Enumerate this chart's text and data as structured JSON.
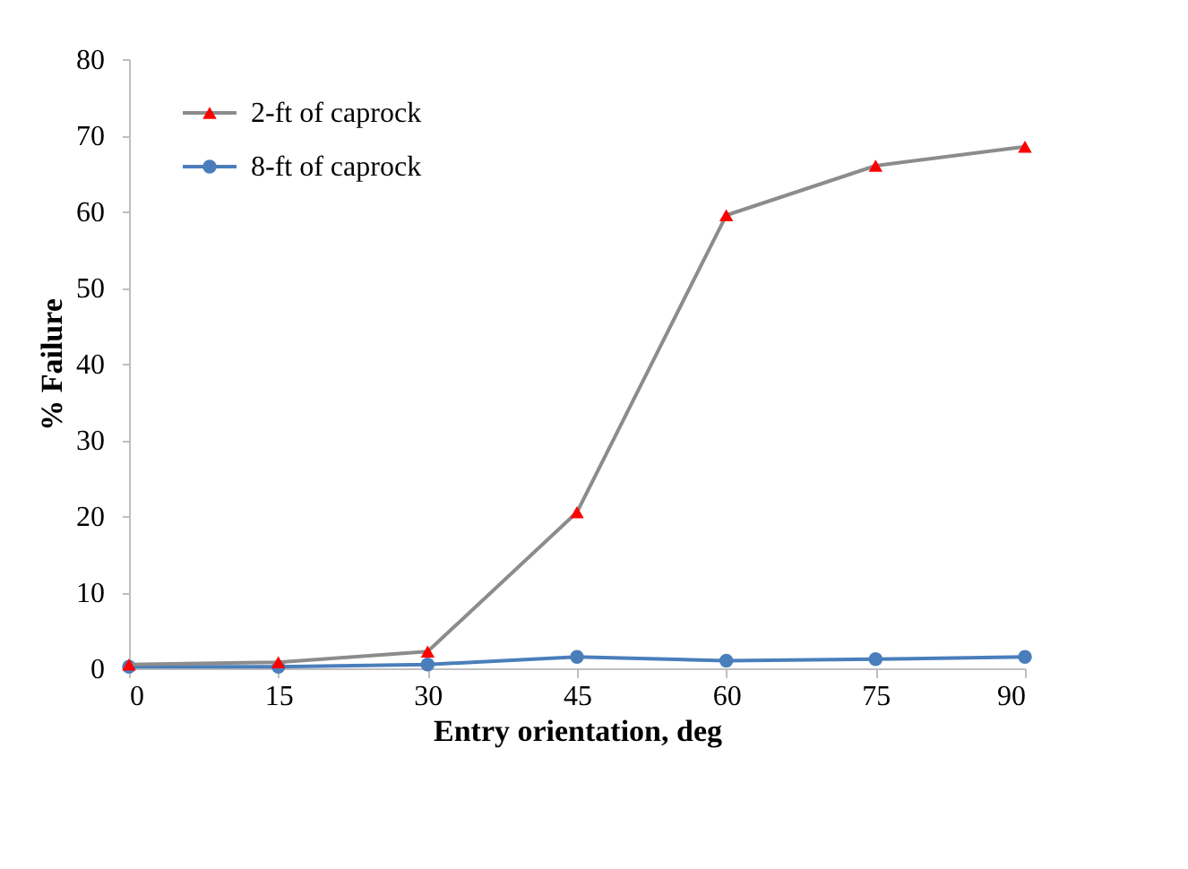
{
  "chart_data": {
    "type": "line",
    "xlabel": "Entry orientation, deg",
    "ylabel": "% Failure",
    "x": [
      0,
      15,
      30,
      45,
      60,
      75,
      90
    ],
    "series": [
      {
        "name": "2-ft of caprock",
        "color": "#8c8c8c",
        "colors": [
          "#ff0000",
          "#ff0000",
          "#ff0000",
          "#ff0000",
          "#ff0000",
          "#ff0000",
          "#ff0000"
        ],
        "marker": "triangle",
        "values": [
          0.5,
          0.8,
          2.2,
          20.5,
          59.5,
          66,
          68.5
        ]
      },
      {
        "name": "8-ft of caprock",
        "color": "#4a7ebb",
        "marker": "circle",
        "values": [
          0.2,
          0.2,
          0.5,
          1.5,
          1.0,
          1.2,
          1.5
        ]
      }
    ],
    "xlim": [
      0,
      90
    ],
    "xticks": [
      0,
      15,
      30,
      45,
      60,
      75,
      90
    ],
    "ylim": [
      0,
      80
    ],
    "yticks": [
      0,
      10,
      20,
      30,
      40,
      50,
      60,
      70,
      80
    ],
    "grid": false,
    "legend": "top left",
    "line_style": "solid"
  }
}
